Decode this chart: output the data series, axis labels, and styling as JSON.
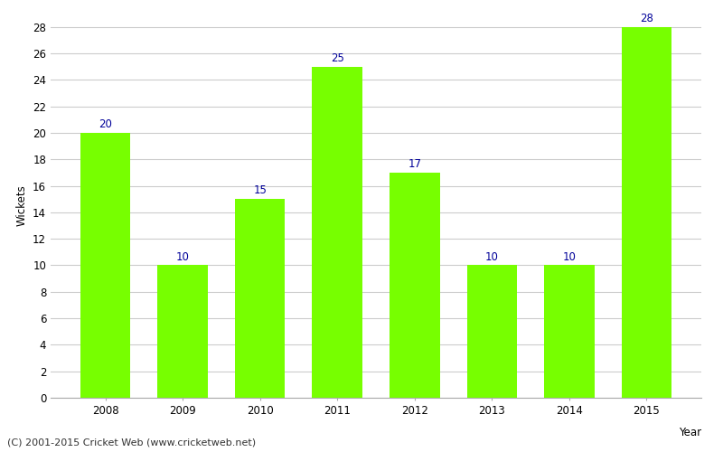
{
  "years": [
    "2008",
    "2009",
    "2010",
    "2011",
    "2012",
    "2013",
    "2014",
    "2015"
  ],
  "wickets": [
    20,
    10,
    15,
    25,
    17,
    10,
    10,
    28
  ],
  "bar_color": "#77ff00",
  "label_color": "#000099",
  "xlabel": "Year",
  "ylabel": "Wickets",
  "ylim": [
    0,
    29
  ],
  "yticks": [
    0,
    2,
    4,
    6,
    8,
    10,
    12,
    14,
    16,
    18,
    20,
    22,
    24,
    26,
    28
  ],
  "grid_color": "#cccccc",
  "background_color": "#ffffff",
  "footer": "(C) 2001-2015 Cricket Web (www.cricketweb.net)",
  "label_fontsize": 8.5,
  "axis_fontsize": 8.5,
  "footer_fontsize": 8,
  "bar_width": 0.65
}
